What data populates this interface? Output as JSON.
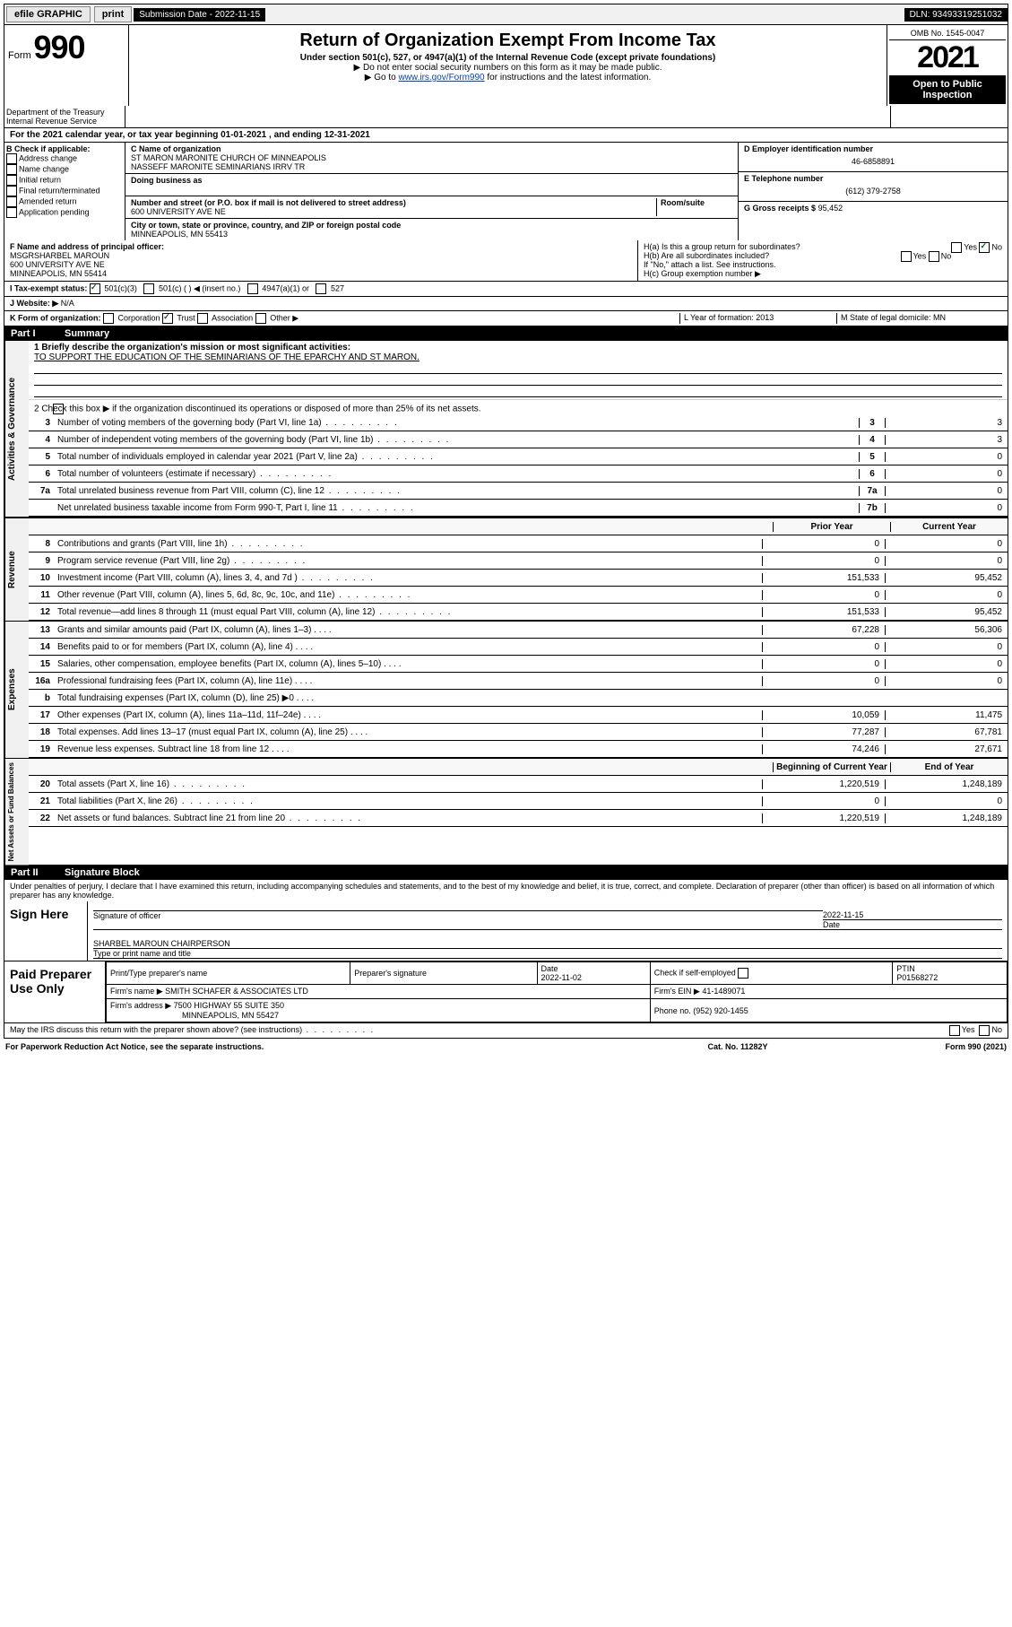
{
  "topbar": {
    "efile_label": "efile GRAPHIC",
    "print_btn": "print",
    "submission_label": "Submission Date - 2022-11-15",
    "dln_label": "DLN: 93493319251032"
  },
  "header": {
    "form_label": "Form",
    "form_number": "990",
    "title": "Return of Organization Exempt From Income Tax",
    "subtitle1": "Under section 501(c), 527, or 4947(a)(1) of the Internal Revenue Code (except private foundations)",
    "subtitle2": "▶ Do not enter social security numbers on this form as it may be made public.",
    "subtitle3": "▶ Go to",
    "link": "www.irs.gov/Form990",
    "subtitle3b": "for instructions and the latest information.",
    "omb": "OMB No. 1545-0047",
    "year": "2021",
    "open_public": "Open to Public Inspection",
    "dept": "Department of the Treasury Internal Revenue Service"
  },
  "line_a": "For the 2021 calendar year, or tax year beginning 01-01-2021   , and ending 12-31-2021",
  "section_b": {
    "label": "B Check if applicable:",
    "items": [
      "Address change",
      "Name change",
      "Initial return",
      "Final return/terminated",
      "Amended return",
      "Application pending"
    ]
  },
  "section_c": {
    "name_label": "C Name of organization",
    "name1": "ST MARON MARONITE CHURCH OF MINNEAPOLIS",
    "name2": "NASSEFF MARONITE SEMINARIANS IRRV TR",
    "dba_label": "Doing business as",
    "addr_label": "Number and street (or P.O. box if mail is not delivered to street address)",
    "room_label": "Room/suite",
    "addr": "600 UNIVERSITY AVE NE",
    "city_label": "City or town, state or province, country, and ZIP or foreign postal code",
    "city": "MINNEAPOLIS, MN  55413"
  },
  "section_d": {
    "ein_label": "D Employer identification number",
    "ein": "46-6858891",
    "phone_label": "E Telephone number",
    "phone": "(612) 379-2758",
    "gross_label": "G Gross receipts $",
    "gross": "95,452"
  },
  "section_f": {
    "label": "F  Name and address of principal officer:",
    "name": "MSGRSHARBEL MAROUN",
    "addr": "600 UNIVERSITY AVE NE",
    "city": "MINNEAPOLIS, MN  55414"
  },
  "section_h": {
    "ha": "H(a)  Is this a group return for subordinates?",
    "hb": "H(b)  Are all subordinates included?",
    "hb_note": "If \"No,\" attach a list. See instructions.",
    "hc": "H(c)  Group exemption number ▶",
    "yes": "Yes",
    "no": "No"
  },
  "section_i": {
    "label": "I   Tax-exempt status:",
    "opt1": "501(c)(3)",
    "opt2": "501(c) (  ) ◀ (insert no.)",
    "opt3": "4947(a)(1) or",
    "opt4": "527"
  },
  "section_j": {
    "label": "J   Website: ▶",
    "value": "N/A"
  },
  "section_k": {
    "label": "K Form of organization:",
    "opts": [
      "Corporation",
      "Trust",
      "Association",
      "Other ▶"
    ]
  },
  "section_l": {
    "label": "L Year of formation: 2013"
  },
  "section_m": {
    "label": "M State of legal domicile: MN"
  },
  "part1": {
    "header_num": "Part I",
    "header_title": "Summary"
  },
  "summary": {
    "mission_label": "1  Briefly describe the organization's mission or most significant activities:",
    "mission": "TO SUPPORT THE EDUCATION OF THE SEMINARIANS OF THE EPARCHY AND ST MARON.",
    "line2": "2   Check this box ▶        if the organization discontinued its operations or disposed of more than 25% of its net assets.",
    "governance_label": "Activities & Governance",
    "revenue_label": "Revenue",
    "expenses_label": "Expenses",
    "netassets_label": "Net Assets or Fund Balances",
    "col_prior": "Prior Year",
    "col_current": "Current Year",
    "col_begin": "Beginning of Current Year",
    "col_end": "End of Year",
    "rows_top": [
      {
        "n": "3",
        "d": "Number of voting members of the governing body (Part VI, line 1a)",
        "bn": "3",
        "v": "3"
      },
      {
        "n": "4",
        "d": "Number of independent voting members of the governing body (Part VI, line 1b)",
        "bn": "4",
        "v": "3"
      },
      {
        "n": "5",
        "d": "Total number of individuals employed in calendar year 2021 (Part V, line 2a)",
        "bn": "5",
        "v": "0"
      },
      {
        "n": "6",
        "d": "Total number of volunteers (estimate if necessary)",
        "bn": "6",
        "v": "0"
      },
      {
        "n": "7a",
        "d": "Total unrelated business revenue from Part VIII, column (C), line 12",
        "bn": "7a",
        "v": "0"
      },
      {
        "n": "",
        "d": "Net unrelated business taxable income from Form 990-T, Part I, line 11",
        "bn": "7b",
        "v": "0"
      }
    ],
    "rows_rev": [
      {
        "n": "8",
        "d": "Contributions and grants (Part VIII, line 1h)",
        "v1": "0",
        "v2": "0"
      },
      {
        "n": "9",
        "d": "Program service revenue (Part VIII, line 2g)",
        "v1": "0",
        "v2": "0"
      },
      {
        "n": "10",
        "d": "Investment income (Part VIII, column (A), lines 3, 4, and 7d )",
        "v1": "151,533",
        "v2": "95,452"
      },
      {
        "n": "11",
        "d": "Other revenue (Part VIII, column (A), lines 5, 6d, 8c, 9c, 10c, and 11e)",
        "v1": "0",
        "v2": "0"
      },
      {
        "n": "12",
        "d": "Total revenue—add lines 8 through 11 (must equal Part VIII, column (A), line 12)",
        "v1": "151,533",
        "v2": "95,452"
      }
    ],
    "rows_exp": [
      {
        "n": "13",
        "d": "Grants and similar amounts paid (Part IX, column (A), lines 1–3)",
        "v1": "67,228",
        "v2": "56,306"
      },
      {
        "n": "14",
        "d": "Benefits paid to or for members (Part IX, column (A), line 4)",
        "v1": "0",
        "v2": "0"
      },
      {
        "n": "15",
        "d": "Salaries, other compensation, employee benefits (Part IX, column (A), lines 5–10)",
        "v1": "0",
        "v2": "0"
      },
      {
        "n": "16a",
        "d": "Professional fundraising fees (Part IX, column (A), line 11e)",
        "v1": "0",
        "v2": "0"
      },
      {
        "n": "b",
        "d": "Total fundraising expenses (Part IX, column (D), line 25) ▶0",
        "v1": "",
        "v2": "",
        "shaded": true
      },
      {
        "n": "17",
        "d": "Other expenses (Part IX, column (A), lines 11a–11d, 11f–24e)",
        "v1": "10,059",
        "v2": "11,475"
      },
      {
        "n": "18",
        "d": "Total expenses. Add lines 13–17 (must equal Part IX, column (A), line 25)",
        "v1": "77,287",
        "v2": "67,781"
      },
      {
        "n": "19",
        "d": "Revenue less expenses. Subtract line 18 from line 12",
        "v1": "74,246",
        "v2": "27,671"
      }
    ],
    "rows_net": [
      {
        "n": "20",
        "d": "Total assets (Part X, line 16)",
        "v1": "1,220,519",
        "v2": "1,248,189"
      },
      {
        "n": "21",
        "d": "Total liabilities (Part X, line 26)",
        "v1": "0",
        "v2": "0"
      },
      {
        "n": "22",
        "d": "Net assets or fund balances. Subtract line 21 from line 20",
        "v1": "1,220,519",
        "v2": "1,248,189"
      }
    ]
  },
  "part2": {
    "header_num": "Part II",
    "header_title": "Signature Block",
    "penalty": "Under penalties of perjury, I declare that I have examined this return, including accompanying schedules and statements, and to the best of my knowledge and belief, it is true, correct, and complete. Declaration of preparer (other than officer) is based on all information of which preparer has any knowledge.",
    "sign_here": "Sign Here",
    "sig_officer": "Signature of officer",
    "sig_date": "2022-11-15",
    "date_label": "Date",
    "sig_name": "SHARBEL MAROUN CHAIRPERSON",
    "sig_name_label": "Type or print name and title"
  },
  "paid": {
    "label": "Paid Preparer Use Only",
    "h_name": "Print/Type preparer's name",
    "h_sig": "Preparer's signature",
    "h_date": "Date",
    "date": "2022-11-02",
    "check_label": "Check         if self-employed",
    "ptin_label": "PTIN",
    "ptin": "P01568272",
    "firm_name_label": "Firm's name     ▶",
    "firm_name": "SMITH SCHAFER & ASSOCIATES LTD",
    "firm_ein_label": "Firm's EIN ▶",
    "firm_ein": "41-1489071",
    "firm_addr_label": "Firm's address ▶",
    "firm_addr": "7500 HIGHWAY 55 SUITE 350",
    "firm_city": "MINNEAPOLIS, MN  55427",
    "firm_phone_label": "Phone no.",
    "firm_phone": "(952) 920-1455"
  },
  "footer": {
    "discuss": "May the IRS discuss this return with the preparer shown above? (see instructions)",
    "yes": "Yes",
    "no": "No",
    "paperwork": "For Paperwork Reduction Act Notice, see the separate instructions.",
    "catno": "Cat. No. 11282Y",
    "formno": "Form 990 (2021)"
  }
}
